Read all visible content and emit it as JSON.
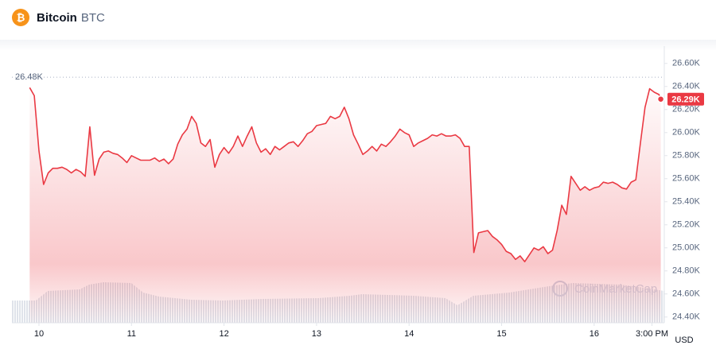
{
  "header": {
    "name": "Bitcoin",
    "symbol": "BTC"
  },
  "chart_data": {
    "type": "line",
    "x": [
      9.9,
      9.95,
      10.0,
      10.05,
      10.1,
      10.15,
      10.2,
      10.25,
      10.3,
      10.35,
      10.4,
      10.45,
      10.5,
      10.55,
      10.6,
      10.65,
      10.7,
      10.75,
      10.8,
      10.85,
      10.9,
      10.95,
      11.0,
      11.05,
      11.1,
      11.15,
      11.2,
      11.25,
      11.3,
      11.35,
      11.4,
      11.45,
      11.5,
      11.55,
      11.6,
      11.65,
      11.7,
      11.75,
      11.8,
      11.85,
      11.9,
      11.95,
      12.0,
      12.05,
      12.1,
      12.15,
      12.2,
      12.25,
      12.3,
      12.35,
      12.4,
      12.45,
      12.5,
      12.55,
      12.6,
      12.65,
      12.7,
      12.75,
      12.8,
      12.85,
      12.9,
      12.95,
      13.0,
      13.05,
      13.1,
      13.15,
      13.2,
      13.25,
      13.3,
      13.35,
      13.4,
      13.45,
      13.5,
      13.55,
      13.6,
      13.65,
      13.7,
      13.75,
      13.8,
      13.85,
      13.9,
      13.95,
      14.0,
      14.05,
      14.1,
      14.15,
      14.2,
      14.25,
      14.3,
      14.35,
      14.4,
      14.45,
      14.5,
      14.55,
      14.6,
      14.65,
      14.7,
      14.75,
      14.8,
      14.85,
      14.9,
      14.95,
      15.0,
      15.05,
      15.1,
      15.15,
      15.2,
      15.25,
      15.3,
      15.35,
      15.4,
      15.45,
      15.5,
      15.55,
      15.6,
      15.65,
      15.7,
      15.75,
      15.8,
      15.85,
      15.9,
      15.95,
      16.0,
      16.05,
      16.1,
      16.15,
      16.2,
      16.25,
      16.3,
      16.35,
      16.4,
      16.45,
      16.5,
      16.55,
      16.6,
      16.65,
      16.7,
      16.72
    ],
    "values": [
      26390,
      26320,
      25840,
      25550,
      25650,
      25690,
      25690,
      25700,
      25680,
      25650,
      25680,
      25660,
      25620,
      26050,
      25630,
      25770,
      25830,
      25840,
      25820,
      25810,
      25780,
      25740,
      25800,
      25780,
      25760,
      25760,
      25760,
      25780,
      25750,
      25770,
      25730,
      25770,
      25900,
      25980,
      26030,
      26140,
      26080,
      25910,
      25880,
      25940,
      25700,
      25810,
      25870,
      25820,
      25880,
      25970,
      25880,
      25970,
      26050,
      25910,
      25830,
      25860,
      25810,
      25880,
      25850,
      25880,
      25910,
      25920,
      25880,
      25930,
      25990,
      26010,
      26060,
      26070,
      26080,
      26140,
      26120,
      26140,
      26220,
      26120,
      25980,
      25900,
      25810,
      25840,
      25880,
      25840,
      25900,
      25880,
      25920,
      25970,
      26030,
      26000,
      25980,
      25880,
      25910,
      25930,
      25950,
      25980,
      25970,
      25990,
      25970,
      25970,
      25980,
      25950,
      25880,
      25880,
      24960,
      25130,
      25140,
      25150,
      25100,
      25070,
      25030,
      24970,
      24950,
      24900,
      24930,
      24880,
      24940,
      25000,
      24980,
      25010,
      24950,
      24980,
      25150,
      25370,
      25290,
      25620,
      25560,
      25500,
      25530,
      25500,
      25520,
      25530,
      25570,
      25560,
      25570,
      25550,
      25520,
      25510,
      25570,
      25590,
      25910,
      26220,
      26380,
      26350,
      26330,
      26290
    ],
    "color": "#ea3943",
    "xlim": [
      9.708,
      16.758
    ],
    "xticks": [
      10,
      11,
      12,
      13,
      14,
      15,
      16,
      {
        "value": 16.625,
        "label": "3:00 PM"
      }
    ],
    "ylim": [
      24350,
      26750
    ],
    "yticks": [
      {
        "value": 24400,
        "label": "24.40K"
      },
      {
        "value": 24600,
        "label": "24.60K"
      },
      {
        "value": 24800,
        "label": "24.80K"
      },
      {
        "value": 25000,
        "label": "25.00K"
      },
      {
        "value": 25200,
        "label": "25.20K"
      },
      {
        "value": 25400,
        "label": "25.40K"
      },
      {
        "value": 25600,
        "label": "25.60K"
      },
      {
        "value": 25800,
        "label": "25.80K"
      },
      {
        "value": 26000,
        "label": "26.00K"
      },
      {
        "value": 26200,
        "label": "26.20K"
      },
      {
        "value": 26400,
        "label": "26.40K"
      },
      {
        "value": 26600,
        "label": "26.60K"
      }
    ],
    "grid": false,
    "reference": {
      "value": 26480,
      "label": "26.48K"
    },
    "last_price": {
      "value": 26290,
      "label": "26.29K"
    },
    "currency": "USD",
    "watermark": "CoinMarketCap"
  }
}
